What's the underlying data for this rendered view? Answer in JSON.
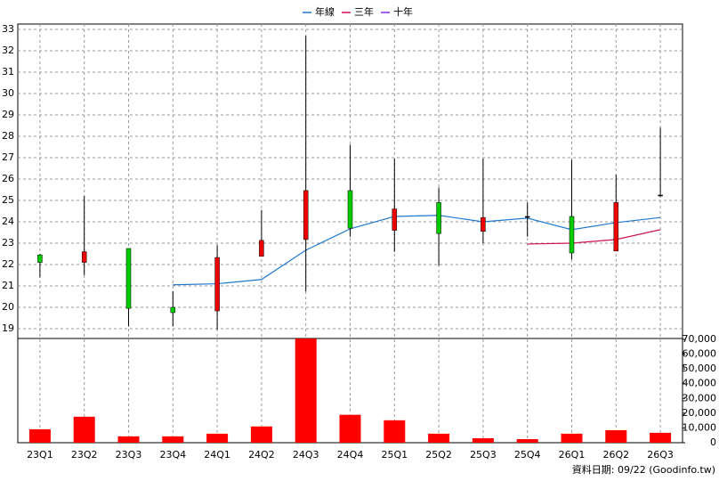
{
  "chart_data": [
    {
      "type": "candlestick",
      "categories": [
        "23Q1",
        "23Q2",
        "23Q3",
        "23Q4",
        "24Q1",
        "24Q2",
        "24Q3",
        "24Q4",
        "25Q1",
        "25Q2",
        "25Q3",
        "25Q4",
        "26Q1",
        "26Q2",
        "26Q3"
      ],
      "open": [
        22.45,
        22.1,
        22.75,
        20.0,
        19.83,
        22.38,
        23.17,
        25.46,
        23.6,
        24.9,
        23.55,
        24.25,
        24.25,
        22.63,
        25.25
      ],
      "close": [
        22.1,
        22.6,
        19.95,
        19.75,
        22.33,
        23.13,
        25.46,
        23.7,
        24.6,
        23.45,
        24.2,
        24.25,
        22.54,
        24.9,
        25.25
      ],
      "high": [
        22.5,
        25.2,
        22.75,
        20.75,
        22.9,
        24.55,
        32.7,
        27.6,
        26.95,
        25.6,
        26.95,
        24.9,
        26.9,
        26.2,
        28.4
      ],
      "low": [
        21.4,
        21.5,
        19.1,
        19.1,
        18.95,
        22.38,
        20.75,
        23.3,
        22.6,
        21.95,
        23.0,
        23.3,
        22.25,
        22.63,
        25.17
      ],
      "up_color": "#ee0000",
      "down_color": "#00cc00",
      "series": [
        {
          "name": "年線",
          "color": "#1f78d0",
          "values": [
            null,
            null,
            null,
            21.05,
            21.1,
            21.3,
            22.67,
            23.67,
            24.25,
            24.3,
            24.0,
            24.17,
            23.63,
            23.96,
            24.2
          ]
        },
        {
          "name": "三年",
          "color": "#d0105a",
          "values": [
            null,
            null,
            null,
            null,
            null,
            null,
            null,
            null,
            null,
            null,
            null,
            22.96,
            23.0,
            23.17,
            23.63
          ]
        },
        {
          "name": "十年",
          "color": "#8a2be2",
          "values": [
            null,
            null,
            null,
            null,
            null,
            null,
            null,
            null,
            null,
            null,
            null,
            null,
            null,
            null,
            null
          ]
        }
      ],
      "ylim": [
        18.54,
        33.25
      ],
      "yticks": [
        19,
        20,
        21,
        22,
        23,
        24,
        25,
        26,
        27,
        28,
        29,
        30,
        31,
        32,
        33
      ],
      "grid": true,
      "legend": "top"
    },
    {
      "type": "bar",
      "values": [
        9100,
        17600,
        4300,
        4300,
        6100,
        11000,
        70500,
        18900,
        15200,
        6100,
        3000,
        2400,
        6100,
        8500,
        6700
      ],
      "color": "#ff0000",
      "ylim": [
        0,
        70600
      ],
      "yticks": [
        0,
        {
          "value": 10000,
          "label": "10,000"
        },
        {
          "value": 20000,
          "label": "20,000"
        },
        {
          "value": 30000,
          "label": "30,000"
        },
        {
          "value": 40000,
          "label": "40,000"
        },
        {
          "value": 50000,
          "label": "50,000"
        },
        {
          "value": 60000,
          "label": "60,000"
        },
        {
          "value": 70000,
          "label": "70,000"
        }
      ],
      "grid": true
    }
  ],
  "source": "資料日期: 09/22 (Goodinfo.tw)"
}
